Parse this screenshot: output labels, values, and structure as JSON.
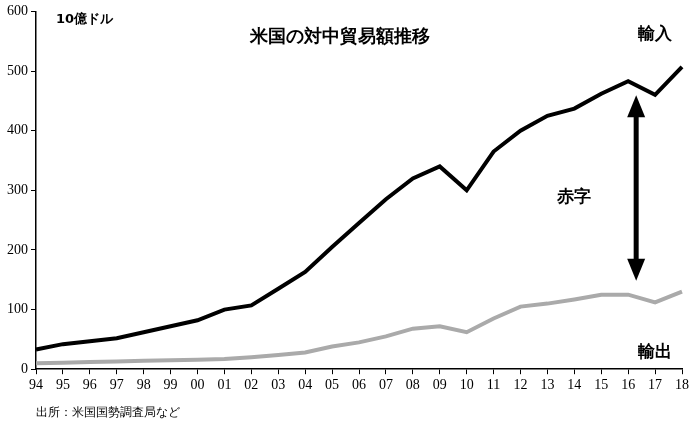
{
  "chart_data": {
    "type": "line",
    "title": "米国の対中貿易額推移",
    "ylabel": "10億ドル",
    "source": "出所：米国国勢調査局など",
    "annotation": "赤字",
    "categories": [
      "94",
      "95",
      "96",
      "97",
      "98",
      "99",
      "00",
      "01",
      "02",
      "03",
      "04",
      "05",
      "06",
      "07",
      "08",
      "09",
      "10",
      "11",
      "12",
      "13",
      "14",
      "15",
      "16",
      "17",
      "18"
    ],
    "series": [
      {
        "name": "輸入",
        "color": "#000000",
        "values": [
          33,
          42,
          47,
          52,
          62,
          72,
          82,
          100,
          107,
          135,
          163,
          205,
          245,
          285,
          320,
          340,
          300,
          365,
          400,
          425,
          437,
          462,
          483,
          460,
          507
        ]
      },
      {
        "name": "輸出",
        "color": "#aaaaaa",
        "values": [
          10,
          11,
          12,
          13,
          14,
          15,
          16,
          17,
          20,
          24,
          28,
          38,
          45,
          55,
          68,
          72,
          62,
          85,
          105,
          110,
          117,
          125,
          125,
          112,
          130
        ]
      }
    ],
    "ylim": [
      0,
      600
    ],
    "yticks": [
      0,
      100,
      200,
      300,
      400,
      500,
      600
    ],
    "grid": false
  }
}
